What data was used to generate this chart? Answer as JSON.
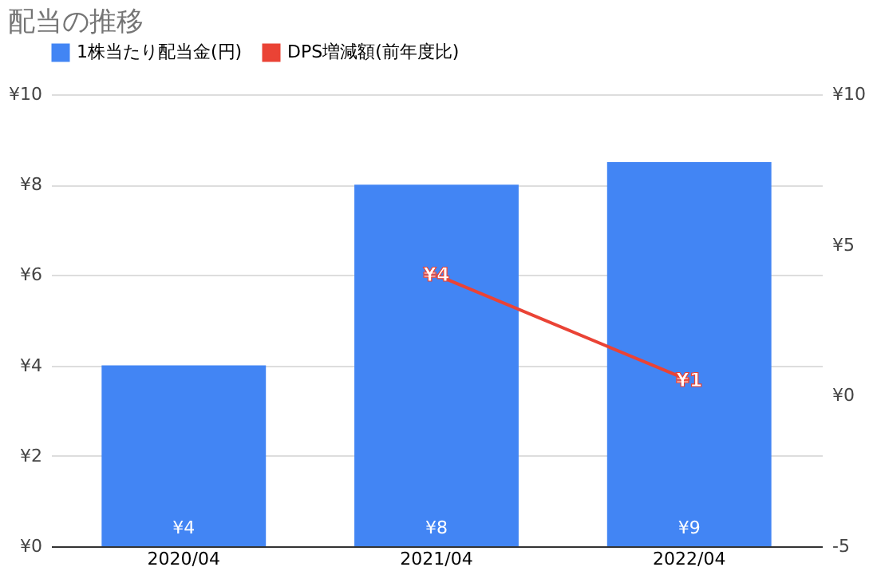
{
  "chart_data": {
    "type": "bar",
    "title": "配当の推移",
    "categories": [
      "2020/04",
      "2021/04",
      "2022/04"
    ],
    "series": [
      {
        "name": "1株当たり配当金(円)",
        "color": "#4285f4",
        "values": [
          4,
          8,
          8.5
        ],
        "value_labels": [
          "¥4",
          "¥8",
          "¥9"
        ]
      },
      {
        "name": "DPS増減額(前年度比)",
        "type": "line",
        "axis": "y2",
        "color": "#ea4335",
        "values": [
          null,
          4,
          0.5
        ],
        "value_labels": [
          null,
          "¥4",
          "¥1"
        ]
      }
    ],
    "ylim": [
      0,
      10
    ],
    "yticks": [
      {
        "value": 0,
        "label": "¥0"
      },
      {
        "value": 2,
        "label": "¥2"
      },
      {
        "value": 4,
        "label": "¥4"
      },
      {
        "value": 6,
        "label": "¥6"
      },
      {
        "value": 8,
        "label": "¥8"
      },
      {
        "value": 10,
        "label": "¥10"
      }
    ],
    "y2lim": [
      -5,
      10
    ],
    "y2ticks": [
      {
        "value": -5,
        "label": "-5"
      },
      {
        "value": 0,
        "label": "¥0"
      },
      {
        "value": 5,
        "label": "¥5"
      },
      {
        "value": 10,
        "label": "¥10"
      }
    ],
    "grid": "y",
    "legend": "top",
    "marker": "none",
    "line_style": "solid"
  }
}
